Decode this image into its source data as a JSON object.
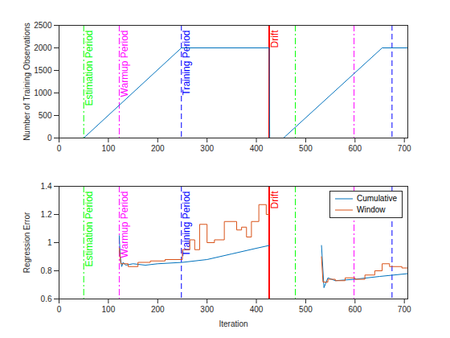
{
  "chart_data": [
    {
      "type": "line",
      "ylabel": "Number of Training Observations",
      "xlim": [
        0,
        707
      ],
      "xticks": [
        0,
        100,
        200,
        300,
        400,
        500,
        600,
        700
      ],
      "ylim": [
        0,
        2500
      ],
      "yticks": [
        0,
        500,
        1000,
        1500,
        2000,
        2500
      ],
      "grid": false,
      "series": [
        {
          "color": "#0072bd",
          "x": [
            0,
            50,
            248,
            426,
            427,
            455,
            655,
            707
          ],
          "values": [
            0,
            0,
            2000,
            2000,
            0,
            0,
            2000,
            2000
          ]
        }
      ],
      "annotations": [
        {
          "x": 50,
          "label": "Estimation Period",
          "color": "#00ff00",
          "line_style": "dashdot"
        },
        {
          "x": 122,
          "label": "Warmup Period",
          "color": "#ff00ff",
          "line_style": "dashdot"
        },
        {
          "x": 248,
          "label": "Training Period",
          "color": "#0000ff",
          "line_style": "dashed"
        },
        {
          "x": 426,
          "label": "Drift",
          "color": "#ff0000",
          "line_style": "solid"
        },
        {
          "x": 479,
          "color": "#00ff00",
          "line_style": "dashdot"
        },
        {
          "x": 598,
          "color": "#ff00ff",
          "line_style": "dashdot"
        },
        {
          "x": 675,
          "color": "#0000ff",
          "line_style": "dashed"
        }
      ]
    },
    {
      "type": "line",
      "xlabel": "Iteration",
      "ylabel": "Regression Error",
      "xlim": [
        0,
        707
      ],
      "xticks": [
        0,
        100,
        200,
        300,
        400,
        500,
        600,
        700
      ],
      "ylim": [
        0.6,
        1.4
      ],
      "yticks": [
        0.6,
        0.8,
        1,
        1.2,
        1.4
      ],
      "grid": false,
      "legend": "northeast",
      "series": [
        {
          "name": "Cumulative",
          "color": "#0072bd",
          "x": [
            122,
            124,
            127,
            130,
            135,
            150,
            175,
            200,
            250,
            300,
            350,
            400,
            426,
            479,
            532,
            537,
            545,
            560,
            600,
            650,
            707
          ],
          "values": [
            1.05,
            0.9,
            0.83,
            0.86,
            0.84,
            0.85,
            0.84,
            0.85,
            0.86,
            0.88,
            0.92,
            0.96,
            0.98,
            null,
            0.98,
            0.68,
            0.75,
            0.73,
            0.74,
            0.76,
            0.78
          ]
        },
        {
          "name": "Window",
          "color": "#d95319",
          "x": [
            122,
            125,
            140,
            140,
            160,
            160,
            185,
            185,
            215,
            215,
            250,
            250,
            265,
            265,
            275,
            275,
            285,
            285,
            300,
            300,
            315,
            315,
            335,
            335,
            360,
            360,
            370,
            370,
            380,
            380,
            390,
            390,
            405,
            405,
            420,
            420,
            426,
            479,
            532,
            535,
            545,
            545,
            560,
            560,
            580,
            580,
            600,
            600,
            620,
            620,
            640,
            640,
            655,
            655,
            670,
            670,
            695,
            695,
            707
          ],
          "values": [
            0.96,
            0.85,
            0.85,
            0.83,
            0.83,
            0.86,
            0.86,
            0.87,
            0.87,
            0.88,
            0.88,
            0.95,
            0.95,
            1.02,
            1.02,
            0.95,
            0.95,
            1.13,
            1.13,
            1.0,
            1.0,
            1.02,
            1.02,
            1.15,
            1.15,
            1.09,
            1.09,
            1.11,
            1.11,
            1.04,
            1.04,
            1.15,
            1.15,
            1.27,
            1.27,
            1.2,
            1.2,
            null,
            0.9,
            0.72,
            0.72,
            0.74,
            0.74,
            0.73,
            0.73,
            0.75,
            0.75,
            0.74,
            0.74,
            0.77,
            0.77,
            0.8,
            0.8,
            0.85,
            0.85,
            0.83,
            0.83,
            0.82,
            0.82
          ]
        }
      ],
      "annotations": [
        {
          "x": 50,
          "label": "Estimation Period",
          "color": "#00ff00",
          "line_style": "dashdot"
        },
        {
          "x": 122,
          "label": "Warmup Period",
          "color": "#ff00ff",
          "line_style": "dashdot"
        },
        {
          "x": 248,
          "label": "Training Period",
          "color": "#0000ff",
          "line_style": "dashed"
        },
        {
          "x": 426,
          "label": "Drift",
          "color": "#ff0000",
          "line_style": "solid"
        },
        {
          "x": 479,
          "color": "#00ff00",
          "line_style": "dashdot"
        },
        {
          "x": 598,
          "color": "#ff00ff",
          "line_style": "dashdot"
        },
        {
          "x": 675,
          "color": "#0000ff",
          "line_style": "dashed"
        }
      ]
    }
  ]
}
